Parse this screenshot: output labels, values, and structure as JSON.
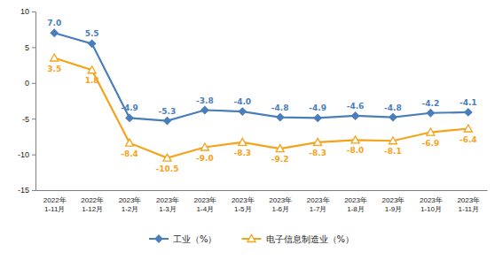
{
  "chart_data": {
    "type": "line",
    "categories": [
      "2022年\n1-11月",
      "2022年\n1-12月",
      "2023年\n1-2月",
      "2023年\n1-3月",
      "2023年\n1-4月",
      "2023年\n1-5月",
      "2023年\n1-6月",
      "2023年\n1-7月",
      "2023年\n1-8月",
      "2023年\n1-9月",
      "2023年\n1-10月",
      "2023年\n1-11月"
    ],
    "series": [
      {
        "name": "工业（%）",
        "color": "#4a7ebb",
        "marker": "diamond",
        "values": [
          7.0,
          5.5,
          -4.9,
          -5.3,
          -3.8,
          -4.0,
          -4.8,
          -4.9,
          -4.6,
          -4.8,
          -4.2,
          -4.1
        ],
        "value_labels": [
          "7.0",
          "5.5",
          "-4.9",
          "-5.3",
          "-3.8",
          "-4.0",
          "-4.8",
          "-4.9",
          "-4.6",
          "-4.8",
          "-4.2",
          "-4.1"
        ]
      },
      {
        "name": "电子信息制造业（%）",
        "color": "#f5a31a",
        "marker": "triangle",
        "values": [
          3.5,
          1.8,
          -8.4,
          -10.5,
          -9.0,
          -8.3,
          -9.2,
          -8.3,
          -8.0,
          -8.1,
          -6.9,
          -6.4
        ],
        "value_labels": [
          "3.5",
          "1.8",
          "-8.4",
          "-10.5",
          "-9.0",
          "-8.3",
          "-9.2",
          "-8.3",
          "-8.0",
          "-8.1",
          "-6.9",
          "-6.4"
        ]
      }
    ],
    "ylim": [
      -15,
      10
    ],
    "yticks": [
      -15,
      -10,
      -5,
      0,
      5,
      10
    ],
    "grid": false,
    "data_labels": true,
    "legend": "bottom"
  }
}
